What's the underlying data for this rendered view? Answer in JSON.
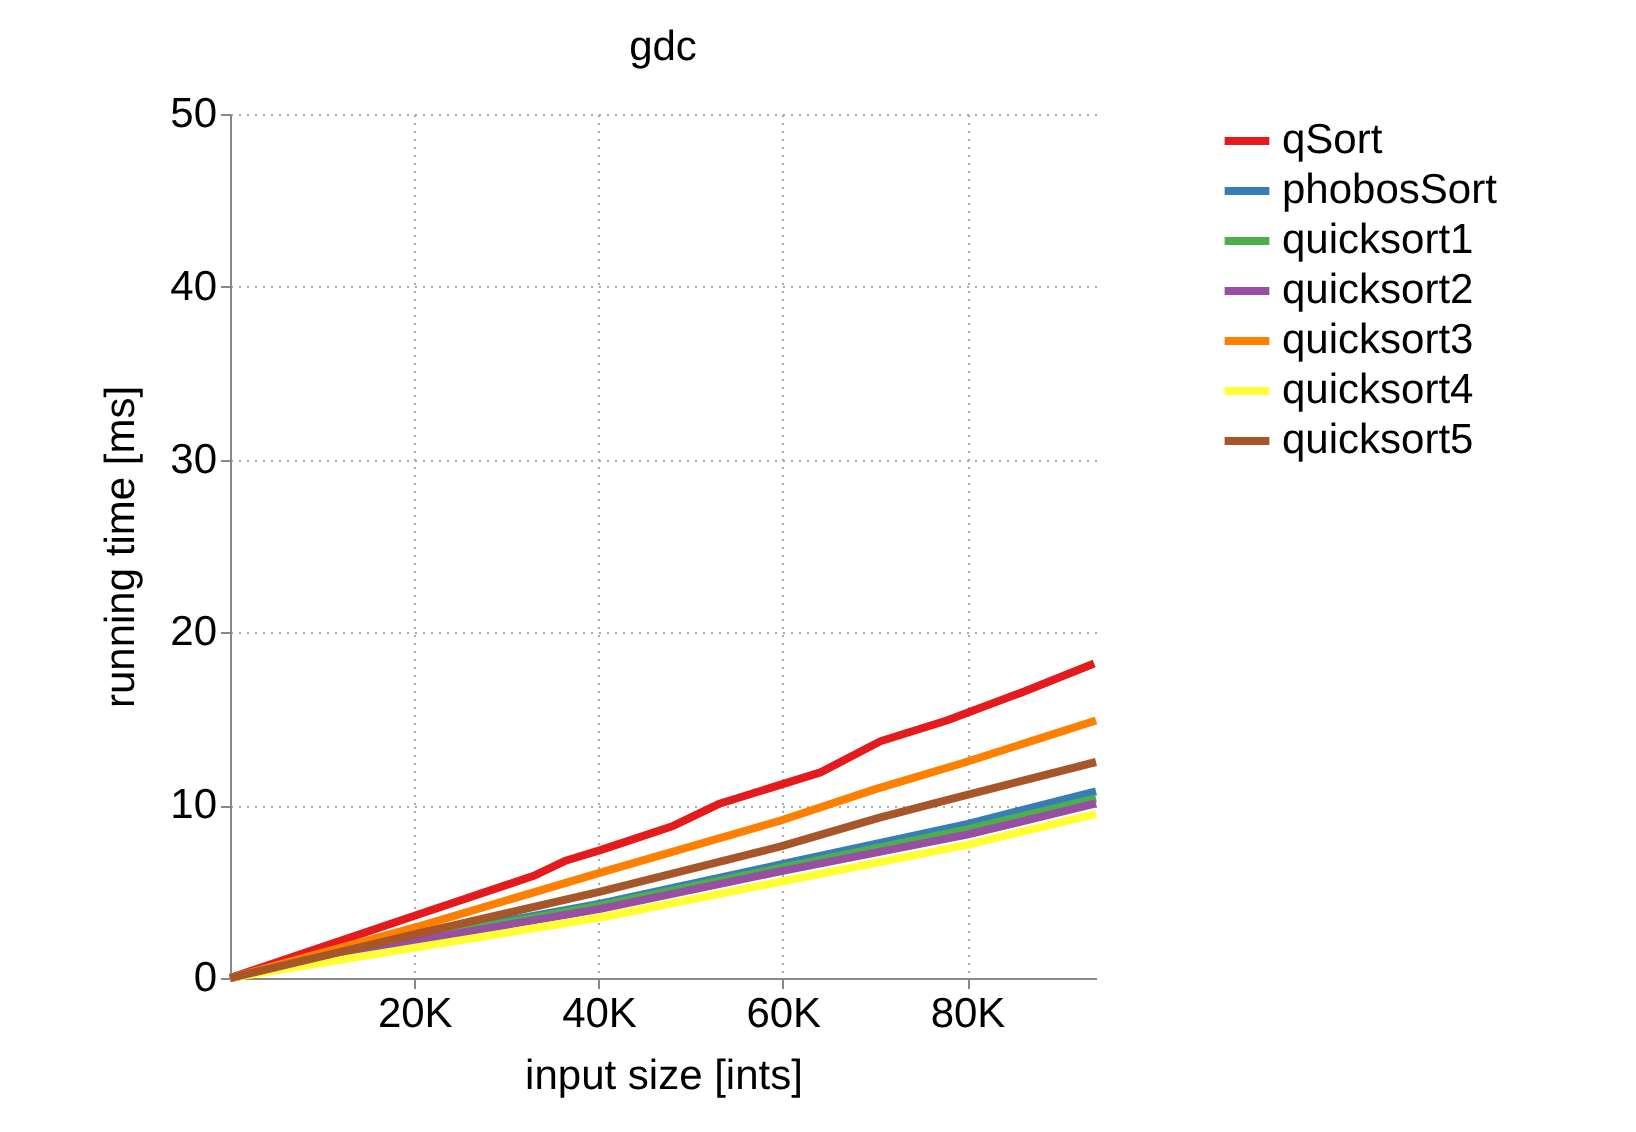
{
  "chart_data": {
    "type": "line",
    "title": "gdc",
    "xlabel": "input size [ints]",
    "ylabel": "running time [ms]",
    "xlim": [
      0,
      94000
    ],
    "xticks": [
      {
        "value": 20000,
        "label": "20K"
      },
      {
        "value": 40000,
        "label": "40K"
      },
      {
        "value": 60000,
        "label": "60K"
      },
      {
        "value": 80000,
        "label": "80K"
      }
    ],
    "ylim": [
      0,
      50
    ],
    "yticks": [
      0,
      10,
      20,
      30,
      40,
      50
    ],
    "grid": true,
    "legend": "top right",
    "line_style": "solid",
    "marker": "none",
    "series": [
      {
        "name": "qSort",
        "color": "#e41a1c",
        "x": [
          0,
          20600,
          32900,
          36500,
          40200,
          48100,
          53200,
          64100,
          70600,
          77800,
          85800,
          93800
        ],
        "values": [
          0,
          3.7,
          5.9,
          6.8,
          7.4,
          8.8,
          10.1,
          11.9,
          13.7,
          14.9,
          16.5,
          18.2
        ]
      },
      {
        "name": "phobosSort",
        "color": "#377eb8",
        "x": [
          0,
          20600,
          40200,
          60000,
          80000,
          94000
        ],
        "values": [
          0,
          2.4,
          4.3,
          6.6,
          8.9,
          10.8
        ]
      },
      {
        "name": "quicksort1",
        "color": "#4daf4a",
        "x": [
          0,
          20600,
          40200,
          60000,
          80000,
          94000
        ],
        "values": [
          0,
          2.3,
          4.2,
          6.4,
          8.6,
          10.4
        ]
      },
      {
        "name": "quicksort2",
        "color": "#984ea3",
        "x": [
          0,
          20600,
          40200,
          60000,
          80000,
          94000
        ],
        "values": [
          0,
          2.2,
          4.0,
          6.2,
          8.3,
          10.1
        ]
      },
      {
        "name": "quicksort3",
        "color": "#ff7f00",
        "x": [
          0,
          20600,
          40200,
          59700,
          69900,
          79300,
          94000
        ],
        "values": [
          0,
          3.0,
          6.1,
          9.1,
          10.9,
          12.4,
          14.9
        ]
      },
      {
        "name": "quicksort4",
        "color": "#ffff33",
        "x": [
          0,
          20600,
          40200,
          60000,
          80000,
          94000
        ],
        "values": [
          0,
          1.8,
          3.5,
          5.6,
          7.7,
          9.5
        ]
      },
      {
        "name": "quicksort5",
        "color": "#a65628",
        "x": [
          0,
          20600,
          40200,
          59700,
          70600,
          77800,
          94000
        ],
        "values": [
          0,
          2.6,
          5.0,
          7.6,
          9.3,
          10.3,
          12.5
        ]
      }
    ]
  }
}
